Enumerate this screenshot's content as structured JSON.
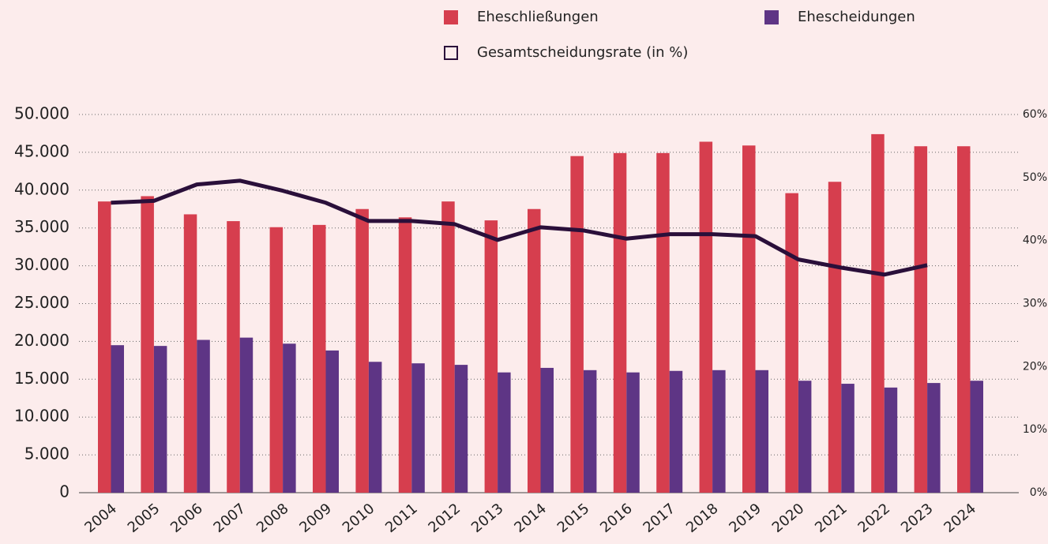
{
  "chart_data": {
    "type": "bar",
    "categories": [
      "2004",
      "2005",
      "2006",
      "2007",
      "2008",
      "2009",
      "2010",
      "2011",
      "2012",
      "2013",
      "2014",
      "2015",
      "2016",
      "2017",
      "2018",
      "2019",
      "2020",
      "2021",
      "2022",
      "2023",
      "2024"
    ],
    "series": [
      {
        "name": "Eheschließungen",
        "color": "#d63e4e",
        "type": "bar",
        "values": [
          38500,
          39200,
          36800,
          35900,
          35100,
          35400,
          37500,
          36400,
          38500,
          36000,
          37500,
          44500,
          44900,
          44900,
          46400,
          45900,
          39600,
          41100,
          47400,
          45800,
          45800
        ]
      },
      {
        "name": "Ehescheidungen",
        "color": "#5e3585",
        "type": "bar",
        "values": [
          19500,
          19400,
          20200,
          20500,
          19700,
          18800,
          17300,
          17100,
          16900,
          15900,
          16500,
          16200,
          15900,
          16100,
          16200,
          16200,
          14800,
          14400,
          13900,
          14500,
          14800
        ]
      },
      {
        "name": "Gesamtscheidungsrate (in %)",
        "color": "#2a0f3a",
        "type": "line",
        "axis": "y2",
        "values": [
          46,
          46.3,
          48.9,
          49.5,
          47.9,
          46,
          43.1,
          43.1,
          42.6,
          40.1,
          42.1,
          41.6,
          40.3,
          41,
          41,
          40.7,
          37,
          35.7,
          34.6,
          36.1,
          null
        ]
      }
    ],
    "ylim": [
      0,
      50000
    ],
    "yticks": [
      0,
      {
        "value": 5000,
        "label": "5.000"
      },
      {
        "value": 10000,
        "label": "10.000"
      },
      {
        "value": 15000,
        "label": "15.000"
      },
      {
        "value": 20000,
        "label": "20.000"
      },
      {
        "value": 25000,
        "label": "25.000"
      },
      {
        "value": 30000,
        "label": "30.000"
      },
      {
        "value": 35000,
        "label": "35.000"
      },
      {
        "value": 40000,
        "label": "40.000"
      },
      {
        "value": 45000,
        "label": "45.000"
      },
      {
        "value": 50000,
        "label": "50.000"
      }
    ],
    "y2lim": [
      0,
      60
    ],
    "y2ticks": [
      {
        "value": 0,
        "label": "0%"
      },
      {
        "value": 10,
        "label": "10%"
      },
      {
        "value": 20,
        "label": "20%"
      },
      {
        "value": 30,
        "label": "30%"
      },
      {
        "value": 40,
        "label": "40%"
      },
      {
        "value": 50,
        "label": "50%"
      },
      {
        "value": 60,
        "label": "60%"
      }
    ],
    "grid": true
  }
}
